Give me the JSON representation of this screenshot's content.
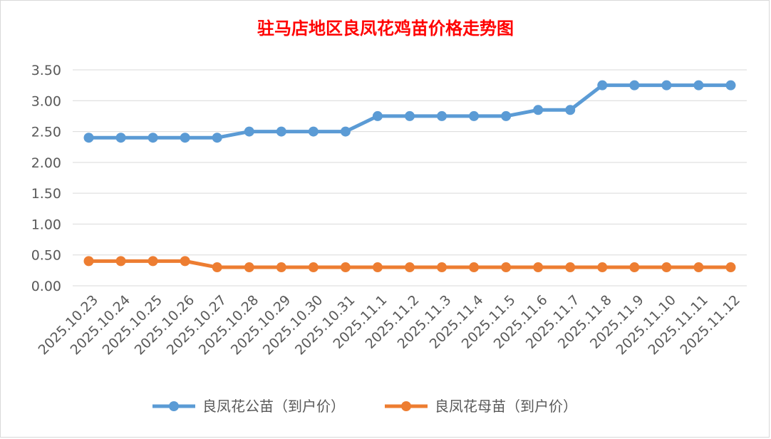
{
  "chart_data": {
    "type": "line",
    "title": "驻马店地区良凤花鸡苗价格走势图",
    "title_color": "#ff0000",
    "x": [
      "2025.10.23",
      "2025.10.24",
      "2025.10.25",
      "2025.10.26",
      "2025.10.27",
      "2025.10.28",
      "2025.10.29",
      "2025.10.30",
      "2025.10.31",
      "2025.11.1",
      "2025.11.2",
      "2025.11.3",
      "2025.11.4",
      "2025.11.5",
      "2025.11.6",
      "2025.11.7",
      "2025.11.8",
      "2025.11.9",
      "2025.11.10",
      "2025.11.11",
      "2025.11.12"
    ],
    "y_ticks": [
      "0.00",
      "0.50",
      "1.00",
      "1.50",
      "2.00",
      "2.50",
      "3.00",
      "3.50"
    ],
    "ylim": [
      0,
      3.5
    ],
    "grid": true,
    "legend_position": "bottom",
    "series": [
      {
        "name": "良凤花公苗（到户价）",
        "color": "#5b9bd5",
        "values": [
          2.4,
          2.4,
          2.4,
          2.4,
          2.4,
          2.5,
          2.5,
          2.5,
          2.5,
          2.75,
          2.75,
          2.75,
          2.75,
          2.75,
          2.85,
          2.85,
          3.25,
          3.25,
          3.25,
          3.25,
          3.25
        ]
      },
      {
        "name": "良凤花母苗（到户价）",
        "color": "#ed7d31",
        "values": [
          0.4,
          0.4,
          0.4,
          0.4,
          0.3,
          0.3,
          0.3,
          0.3,
          0.3,
          0.3,
          0.3,
          0.3,
          0.3,
          0.3,
          0.3,
          0.3,
          0.3,
          0.3,
          0.3,
          0.3,
          0.3
        ]
      }
    ]
  }
}
